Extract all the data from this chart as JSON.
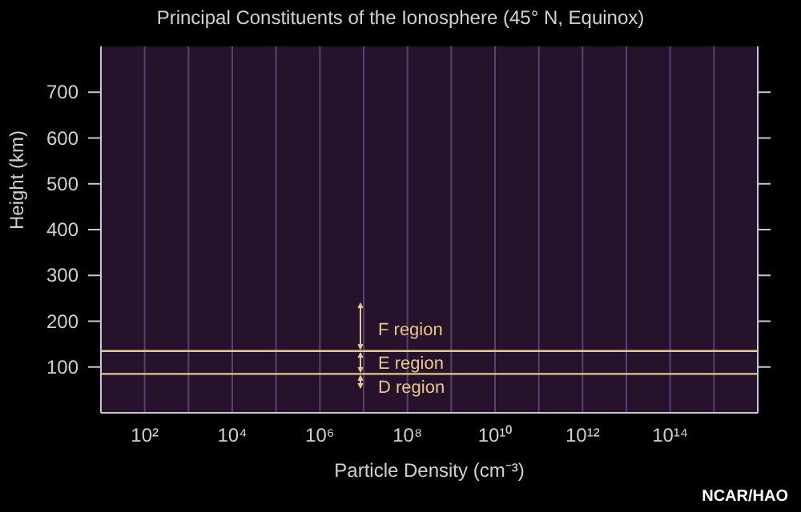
{
  "chart_data": {
    "type": "line",
    "title": "Principal Constituents of the Ionosphere (45° N, Equinox)",
    "xlabel": "Particle Density (cm⁻³)",
    "ylabel": "Height (km)",
    "log": "x",
    "xlim": [
      10,
      10000000000000000
    ],
    "xticks": [
      {
        "value": 100,
        "label": "10²"
      },
      {
        "value": 1000,
        "label": null
      },
      {
        "value": 10000,
        "label": "10⁴"
      },
      {
        "value": 100000,
        "label": null
      },
      {
        "value": 1000000,
        "label": "10⁶"
      },
      {
        "value": 10000000,
        "label": null
      },
      {
        "value": 100000000,
        "label": "10⁸"
      },
      {
        "value": 1000000000,
        "label": null
      },
      {
        "value": 10000000000,
        "label": "10¹⁰"
      },
      {
        "value": 100000000000,
        "label": null
      },
      {
        "value": 1000000000000,
        "label": "10¹²"
      },
      {
        "value": 10000000000000,
        "label": null
      },
      {
        "value": 100000000000000,
        "label": "10¹⁴"
      },
      {
        "value": 1000000000000000,
        "label": null
      }
    ],
    "ylim": [
      0,
      800
    ],
    "yticks": [
      100,
      200,
      300,
      400,
      500,
      600,
      700
    ],
    "grid": "x",
    "ref_lines": [
      {
        "axis": "y",
        "value": 135,
        "color": "#e6c98f"
      },
      {
        "axis": "y",
        "value": 85,
        "color": "#e6c98f"
      }
    ],
    "annotations": [
      "F region",
      "E region",
      "D region",
      "NCAR/HAO"
    ]
  }
}
